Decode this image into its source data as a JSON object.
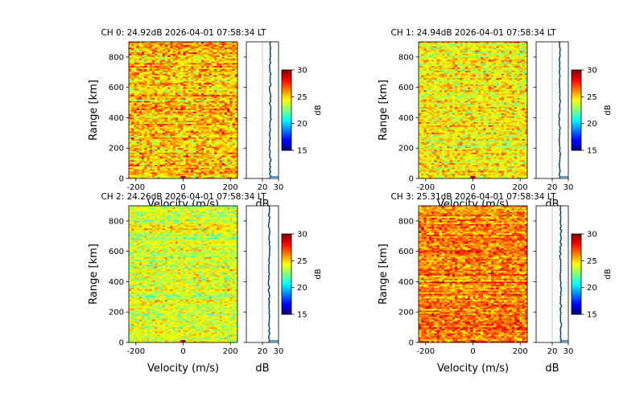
{
  "figure": {
    "type": "range-doppler spectra",
    "panels": [
      {
        "channel": 0,
        "title": "CH 0: 24.92dB 2026-04-01 07:58:34 LT",
        "noise_db": 24.92,
        "mean_level_db": 25.3,
        "spread_db": 2.2
      },
      {
        "channel": 1,
        "title": "CH 1: 24.94dB 2026-04-01 07:58:34 LT",
        "noise_db": 24.94,
        "mean_level_db": 24.6,
        "spread_db": 2.0
      },
      {
        "channel": 2,
        "title": "CH 2: 24.26dB 2026-04-01 07:58:34 LT",
        "noise_db": 24.26,
        "mean_level_db": 23.9,
        "spread_db": 1.7
      },
      {
        "channel": 3,
        "title": "CH 3: 25.31dB 2026-04-01 07:58:34 LT",
        "noise_db": 25.31,
        "mean_level_db": 26.2,
        "spread_db": 1.9
      }
    ]
  },
  "chart_data": [
    {
      "type": "heatmap",
      "title": "CH 0: 24.92dB 2026-04-01 07:58:34 LT",
      "xlabel": "Velocity (m/s)",
      "ylabel": "Range [km]",
      "xlim": [
        -230,
        230
      ],
      "ylim": [
        0,
        900
      ],
      "xticks": [
        "-200",
        "0",
        "200"
      ],
      "xtick_values": [
        -200,
        0,
        200
      ],
      "yticks": [
        "0",
        "200",
        "400",
        "600",
        "800"
      ],
      "ytick_values": [
        0,
        200,
        400,
        600,
        800
      ],
      "colorbar": {
        "label": "dB",
        "range": [
          15,
          30
        ],
        "ticks": [
          "15",
          "20",
          "25",
          "30"
        ],
        "tick_values": [
          15,
          20,
          25,
          30
        ],
        "colormap": "jet"
      },
      "profile": {
        "xlabel": "dB",
        "xlim": [
          10,
          30
        ],
        "xticks": [
          "20",
          "30"
        ],
        "xtick_values": [
          20,
          30
        ],
        "noise_line_db": 24.92,
        "mean_profile_db": 24.8
      }
    },
    {
      "type": "heatmap",
      "title": "CH 1: 24.94dB 2026-04-01 07:58:34 LT",
      "xlabel": "Velocity (m/s)",
      "ylabel": "Range [km]",
      "xlim": [
        -230,
        230
      ],
      "ylim": [
        0,
        900
      ],
      "xticks": [
        "-200",
        "0",
        "200"
      ],
      "xtick_values": [
        -200,
        0,
        200
      ],
      "yticks": [
        "0",
        "200",
        "400",
        "600",
        "800"
      ],
      "ytick_values": [
        0,
        200,
        400,
        600,
        800
      ],
      "colorbar": {
        "label": "dB",
        "range": [
          15,
          30
        ],
        "ticks": [
          "15",
          "20",
          "25",
          "30"
        ],
        "tick_values": [
          15,
          20,
          25,
          30
        ],
        "colormap": "jet"
      },
      "profile": {
        "xlabel": "dB",
        "xlim": [
          10,
          30
        ],
        "xticks": [
          "20",
          "30"
        ],
        "xtick_values": [
          20,
          30
        ],
        "noise_line_db": 24.94,
        "mean_profile_db": 24.6
      }
    },
    {
      "type": "heatmap",
      "title": "CH 2: 24.26dB 2026-04-01 07:58:34 LT",
      "xlabel": "Velocity (m/s)",
      "ylabel": "Range [km]",
      "xlim": [
        -230,
        230
      ],
      "ylim": [
        0,
        900
      ],
      "xticks": [
        "-200",
        "0",
        "200"
      ],
      "xtick_values": [
        -200,
        0,
        200
      ],
      "yticks": [
        "0",
        "200",
        "400",
        "600",
        "800"
      ],
      "ytick_values": [
        0,
        200,
        400,
        600,
        800
      ],
      "colorbar": {
        "label": "dB",
        "range": [
          15,
          30
        ],
        "ticks": [
          "15",
          "20",
          "25",
          "30"
        ],
        "tick_values": [
          15,
          20,
          25,
          30
        ],
        "colormap": "jet"
      },
      "profile": {
        "xlabel": "dB",
        "xlim": [
          10,
          30
        ],
        "xticks": [
          "20",
          "30"
        ],
        "xtick_values": [
          20,
          30
        ],
        "noise_line_db": 24.26,
        "mean_profile_db": 24.2
      }
    },
    {
      "type": "heatmap",
      "title": "CH 3: 25.31dB 2026-04-01 07:58:34 LT",
      "xlabel": "Velocity (m/s)",
      "ylabel": "Range [km]",
      "xlim": [
        -230,
        230
      ],
      "ylim": [
        0,
        900
      ],
      "xticks": [
        "-200",
        "0",
        "200"
      ],
      "xtick_values": [
        -200,
        0,
        200
      ],
      "yticks": [
        "0",
        "200",
        "400",
        "600",
        "800"
      ],
      "ytick_values": [
        0,
        200,
        400,
        600,
        800
      ],
      "colorbar": {
        "label": "dB",
        "range": [
          15,
          30
        ],
        "ticks": [
          "15",
          "20",
          "25",
          "30"
        ],
        "tick_values": [
          15,
          20,
          25,
          30
        ],
        "colormap": "jet"
      },
      "profile": {
        "xlabel": "dB",
        "xlim": [
          10,
          30
        ],
        "xticks": [
          "20",
          "30"
        ],
        "xtick_values": [
          20,
          30
        ],
        "noise_line_db": 25.31,
        "mean_profile_db": 25.2
      }
    }
  ]
}
